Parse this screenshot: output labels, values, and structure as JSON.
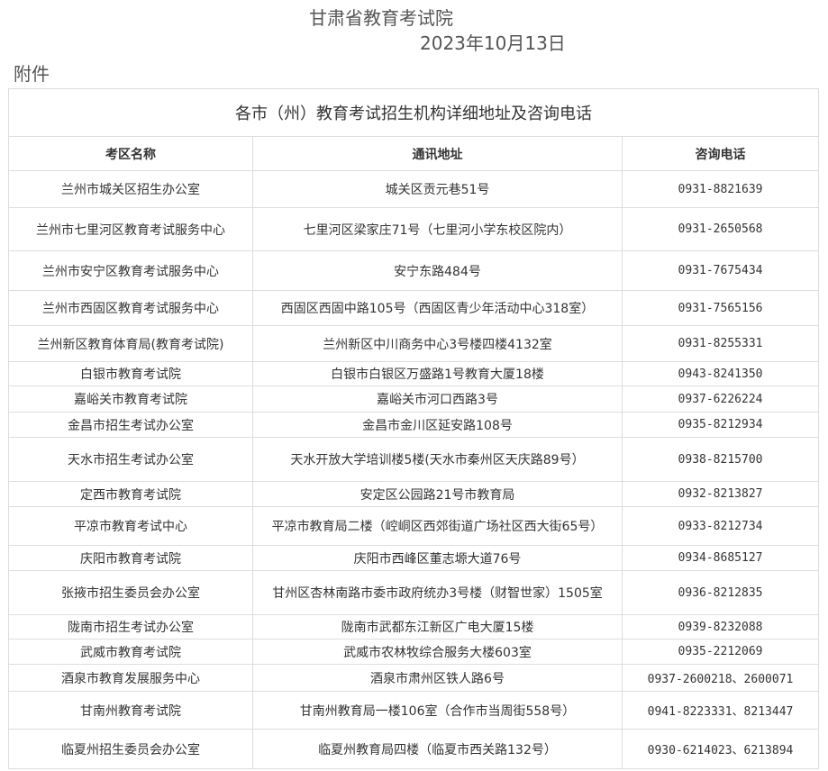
{
  "header": {
    "org": "甘肃省教育考试院",
    "date": "2023年10月13日",
    "attachment": "附件"
  },
  "table": {
    "title": "各市（州）教育考试招生机构详细地址及咨询电话",
    "columns": [
      "考区名称",
      "通讯地址",
      "咨询电话"
    ],
    "rows": [
      [
        "兰州市城关区招生办公室",
        "城关区贡元巷51号",
        "0931-8821639"
      ],
      [
        "兰州市七里河区教育考试服务中心",
        "七里河区梁家庄71号（七里河小学东校区院内）",
        "0931-2650568"
      ],
      [
        "兰州市安宁区教育考试服务中心",
        "安宁东路484号",
        "0931-7675434"
      ],
      [
        "兰州市西固区教育考试服务中心",
        "西固区西固中路105号（西固区青少年活动中心318室）",
        "0931-7565156"
      ],
      [
        "兰州新区教育体育局(教育考试院)",
        "兰州新区中川商务中心3号楼四楼4132室",
        "0931-8255331"
      ],
      [
        "白银市教育考试院",
        "白银市白银区万盛路1号教育大厦18楼",
        "0943-8241350"
      ],
      [
        "嘉峪关市教育考试院",
        "嘉峪关市河口西路3号",
        "0937-6226224"
      ],
      [
        "金昌市招生考试办公室",
        "金昌市金川区延安路108号",
        "0935-8212934"
      ],
      [
        "天水市招生考试办公室",
        "天水开放大学培训楼5楼(天水市秦州区天庆路89号）",
        "0938-8215700"
      ],
      [
        "定西市教育考试院",
        "安定区公园路21号市教育局",
        "0932-8213827"
      ],
      [
        "平凉市教育考试中心",
        "平凉市教育局二楼（崆峒区西郊街道广场社区西大街65号）",
        "0933-8212734"
      ],
      [
        "庆阳市教育考试院",
        "庆阳市西峰区董志塬大道76号",
        "0934-8685127"
      ],
      [
        "张掖市招生委员会办公室",
        "甘州区杏林南路市委市政府统办3号楼（财智世家）1505室",
        "0936-8212835"
      ],
      [
        "陇南市招生考试办公室",
        "陇南市武都东江新区广电大厦15楼",
        "0939-8232088"
      ],
      [
        "武威市教育考试院",
        "武威市农林牧综合服务大楼603室",
        "0935-2212069"
      ],
      [
        "酒泉市教育发展服务中心",
        "酒泉市肃州区铁人路6号",
        "0937-2600218、2600071"
      ],
      [
        "甘南州教育考试院",
        "甘南州教育局一楼106室（合作市当周街558号）",
        "0941-8223331、8213447"
      ],
      [
        "临夏州招生委员会办公室",
        "临夏州教育局四楼（临夏市西关路132号）",
        "0930-6214023、6213894"
      ]
    ]
  }
}
